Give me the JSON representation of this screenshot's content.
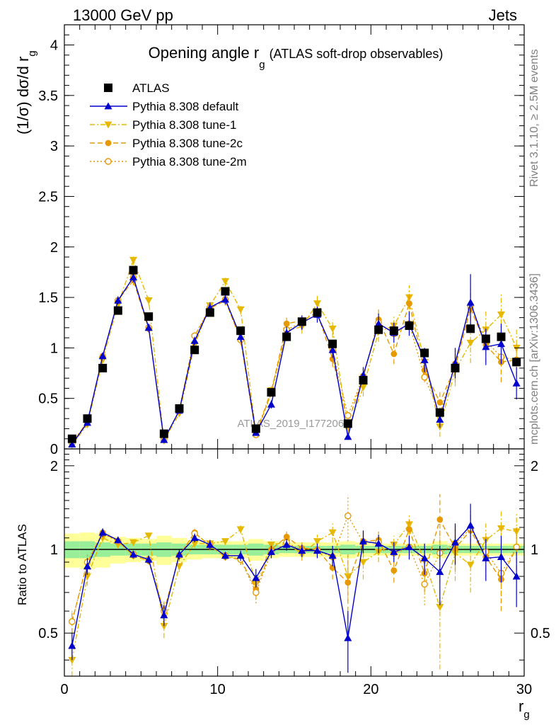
{
  "header": {
    "left": "13000 GeV pp",
    "right": "Jets"
  },
  "side_text": {
    "rivet": "Rivet 3.1.10, ≥ 2.5M events",
    "mcplots": "mcplots.cern.ch [arXiv:1306.3436]"
  },
  "watermark": "ATLAS_2019_I1772062",
  "chart_data": [
    {
      "type": "scatter",
      "panel": "main",
      "title": "Opening angle r_g (ATLAS soft-drop observables)",
      "title_main": "Opening angle r",
      "title_sub": "g",
      "title_extra": "(ATLAS soft-drop observables)",
      "ylabel": "(1/σ) dσ/d r",
      "ylabel_sub": "g",
      "xlim": [
        0,
        30
      ],
      "ylim": [
        0,
        4.2
      ],
      "yticks": [
        0,
        0.5,
        1,
        1.5,
        2,
        2.5,
        3,
        3.5,
        4
      ],
      "ytick_labels": [
        "0",
        "0.5",
        "1",
        "1.5",
        "2",
        "2.5",
        "3",
        "3.5",
        "4"
      ],
      "legend_position": "top-left",
      "x": [
        0.5,
        1.5,
        2.5,
        3.5,
        4.5,
        5.5,
        6.5,
        7.5,
        8.5,
        9.5,
        10.5,
        11.5,
        12.5,
        13.5,
        14.5,
        15.5,
        16.5,
        17.5,
        18.5,
        19.5,
        20.5,
        21.5,
        22.5,
        23.5,
        24.5,
        25.5,
        26.5,
        27.5,
        28.5,
        29.5
      ],
      "series": [
        {
          "name": "ATLAS",
          "color": "#000000",
          "marker": "square",
          "line": "none",
          "values": [
            0.1,
            0.3,
            0.8,
            1.37,
            1.77,
            1.31,
            0.15,
            0.4,
            0.98,
            1.35,
            1.56,
            1.17,
            0.2,
            0.56,
            1.11,
            1.26,
            1.35,
            1.04,
            0.25,
            0.68,
            1.18,
            1.17,
            1.22,
            0.95,
            0.36,
            0.8,
            1.19,
            1.09,
            1.11,
            0.86
          ]
        },
        {
          "name": "Pythia 8.308 default",
          "color": "#0000cc",
          "marker": "triangle-up",
          "line": "solid",
          "values": [
            0.045,
            0.26,
            0.92,
            1.47,
            1.7,
            1.2,
            0.09,
            0.38,
            1.07,
            1.4,
            1.48,
            1.11,
            0.16,
            0.44,
            1.15,
            1.25,
            1.33,
            0.98,
            0.12,
            0.73,
            1.24,
            1.15,
            1.24,
            0.88,
            0.29,
            0.85,
            1.45,
            1.01,
            1.04,
            0.65
          ]
        },
        {
          "name": "Pythia 8.308 tune-1",
          "color": "#e6b800",
          "marker": "triangle-down",
          "line": "dashdot",
          "values": [
            0.04,
            0.24,
            0.88,
            1.43,
            1.87,
            1.47,
            0.08,
            0.35,
            1.03,
            1.42,
            1.66,
            1.38,
            0.15,
            0.58,
            1.17,
            1.21,
            1.44,
            1.19,
            0.2,
            0.61,
            1.16,
            1.22,
            1.5,
            0.86,
            0.22,
            0.78,
            1.05,
            1.18,
            1.33,
            1.0
          ]
        },
        {
          "name": "Pythia 8.308 tune-2c",
          "color": "#e69a00",
          "marker": "circle",
          "line": "dashed",
          "values": [
            0.055,
            0.27,
            0.92,
            1.47,
            1.67,
            1.19,
            0.09,
            0.38,
            1.12,
            1.39,
            1.47,
            1.08,
            0.14,
            0.56,
            1.24,
            1.27,
            1.35,
            0.89,
            0.26,
            0.71,
            1.28,
            0.94,
            1.44,
            0.78,
            0.46,
            0.81,
            1.39,
            1.03,
            0.86,
            0.88
          ]
        },
        {
          "name": "Pythia 8.308 tune-2m",
          "color": "#e69a00",
          "marker": "circle-open",
          "line": "dotted",
          "values": [
            0.055,
            0.27,
            0.91,
            1.47,
            1.7,
            1.2,
            0.09,
            0.38,
            1.12,
            1.4,
            1.48,
            1.08,
            0.14,
            0.55,
            1.18,
            1.25,
            1.33,
            0.98,
            0.33,
            0.72,
            1.25,
            1.14,
            1.24,
            0.71,
            0.35,
            0.84,
            1.42,
            1.07,
            0.91,
            0.88
          ]
        }
      ],
      "error_bars": {
        "Pythia 8.308 default": [
          0.01,
          0.03,
          0.03,
          0.04,
          0.05,
          0.04,
          0.01,
          0.02,
          0.04,
          0.05,
          0.05,
          0.05,
          0.02,
          0.04,
          0.06,
          0.07,
          0.08,
          0.08,
          0.03,
          0.08,
          0.1,
          0.1,
          0.12,
          0.12,
          0.08,
          0.15,
          0.28,
          0.18,
          0.2,
          0.16
        ],
        "Pythia 8.308 tune-1": [
          0.01,
          0.03,
          0.03,
          0.04,
          0.05,
          0.05,
          0.01,
          0.02,
          0.04,
          0.05,
          0.05,
          0.05,
          0.02,
          0.04,
          0.06,
          0.07,
          0.08,
          0.09,
          0.04,
          0.09,
          0.1,
          0.1,
          0.12,
          0.14,
          0.1,
          0.16,
          0.2,
          0.18,
          0.2,
          0.18
        ],
        "Pythia 8.308 tune-2c": [
          0.01,
          0.03,
          0.03,
          0.04,
          0.05,
          0.04,
          0.01,
          0.02,
          0.04,
          0.05,
          0.05,
          0.05,
          0.02,
          0.04,
          0.06,
          0.07,
          0.08,
          0.08,
          0.04,
          0.08,
          0.1,
          0.1,
          0.12,
          0.12,
          0.1,
          0.15,
          0.2,
          0.18,
          0.2,
          0.16
        ]
      }
    },
    {
      "type": "scatter",
      "panel": "ratio",
      "ylabel": "Ratio to ATLAS",
      "xlabel": "r",
      "xlabel_sub": "g",
      "xlim": [
        0,
        30
      ],
      "ylim": [
        0.35,
        2.3
      ],
      "log_y": true,
      "xticks": [
        0,
        10,
        20,
        30
      ],
      "xtick_labels": [
        "0",
        "10",
        "20",
        "30"
      ],
      "yticks": [
        0.5,
        1,
        2
      ],
      "ytick_labels": [
        "0.5",
        "1",
        "2"
      ],
      "reference_line": 1,
      "x": [
        0.5,
        1.5,
        2.5,
        3.5,
        4.5,
        5.5,
        6.5,
        7.5,
        8.5,
        9.5,
        10.5,
        11.5,
        12.5,
        13.5,
        14.5,
        15.5,
        16.5,
        17.5,
        18.5,
        19.5,
        20.5,
        21.5,
        22.5,
        23.5,
        24.5,
        25.5,
        26.5,
        27.5,
        28.5,
        29.5
      ],
      "band_inner": [
        0.07,
        0.07,
        0.06,
        0.05,
        0.05,
        0.05,
        0.06,
        0.05,
        0.04,
        0.04,
        0.04,
        0.04,
        0.05,
        0.04,
        0.03,
        0.03,
        0.03,
        0.03,
        0.04,
        0.03,
        0.03,
        0.03,
        0.03,
        0.03,
        0.04,
        0.03,
        0.03,
        0.03,
        0.03,
        0.03
      ],
      "band_outer": [
        0.14,
        0.15,
        0.14,
        0.11,
        0.1,
        0.09,
        0.12,
        0.1,
        0.08,
        0.07,
        0.07,
        0.07,
        0.09,
        0.07,
        0.06,
        0.06,
        0.06,
        0.06,
        0.07,
        0.06,
        0.05,
        0.05,
        0.05,
        0.05,
        0.07,
        0.05,
        0.05,
        0.05,
        0.05,
        0.05
      ],
      "series": [
        {
          "name": "Pythia 8.308 default",
          "color": "#0000cc",
          "marker": "triangle-up",
          "line": "solid",
          "values": [
            0.45,
            0.87,
            1.15,
            1.08,
            0.96,
            0.92,
            0.58,
            0.96,
            1.1,
            1.04,
            0.95,
            0.95,
            0.79,
            0.98,
            1.04,
            0.99,
            0.99,
            0.95,
            0.48,
            1.07,
            1.05,
            0.98,
            1.02,
            0.93,
            0.83,
            1.06,
            1.22,
            0.93,
            0.94,
            0.8
          ]
        },
        {
          "name": "Pythia 8.308 tune-1",
          "color": "#e6b800",
          "marker": "triangle-down",
          "line": "dashdot",
          "values": [
            0.4,
            0.8,
            1.1,
            1.04,
            1.06,
            1.12,
            0.53,
            0.87,
            1.05,
            1.05,
            1.07,
            1.18,
            0.75,
            1.04,
            1.06,
            0.96,
            1.07,
            1.15,
            0.8,
            0.9,
            0.98,
            1.04,
            1.23,
            0.91,
            0.62,
            0.97,
            0.88,
            1.08,
            1.19,
            1.16
          ]
        },
        {
          "name": "Pythia 8.308 tune-2c",
          "color": "#e69a00",
          "marker": "circle",
          "line": "dashed",
          "values": [
            0.55,
            0.9,
            1.15,
            1.07,
            0.95,
            0.91,
            0.6,
            0.95,
            1.15,
            1.03,
            0.94,
            0.92,
            0.72,
            1.0,
            1.11,
            1.01,
            1.0,
            0.86,
            0.76,
            1.07,
            1.08,
            0.84,
            1.18,
            0.82,
            1.28,
            1.01,
            1.17,
            0.94,
            0.78,
            1.02
          ]
        },
        {
          "name": "Pythia 8.308 tune-2m",
          "color": "#e69a00",
          "marker": "circle-open",
          "line": "dotted",
          "values": [
            0.55,
            0.9,
            1.14,
            1.07,
            0.96,
            0.92,
            0.6,
            0.95,
            1.14,
            1.04,
            0.95,
            0.92,
            0.7,
            0.98,
            1.06,
            0.99,
            0.99,
            0.94,
            1.32,
            1.06,
            1.06,
            0.97,
            1.02,
            0.75,
            0.97,
            1.05,
            1.19,
            0.98,
            0.82,
            1.02
          ]
        }
      ],
      "error_bars": {
        "Pythia 8.308 default": [
          0.05,
          0.06,
          0.04,
          0.03,
          0.03,
          0.03,
          0.05,
          0.04,
          0.04,
          0.04,
          0.03,
          0.04,
          0.06,
          0.05,
          0.05,
          0.05,
          0.06,
          0.08,
          0.12,
          0.1,
          0.08,
          0.08,
          0.1,
          0.12,
          0.2,
          0.18,
          0.24,
          0.16,
          0.18,
          0.18
        ],
        "Pythia 8.308 tune-1": [
          0.05,
          0.06,
          0.04,
          0.03,
          0.03,
          0.03,
          0.05,
          0.04,
          0.04,
          0.04,
          0.03,
          0.04,
          0.06,
          0.05,
          0.05,
          0.05,
          0.06,
          0.09,
          0.15,
          0.12,
          0.08,
          0.08,
          0.1,
          0.14,
          0.25,
          0.2,
          0.18,
          0.16,
          0.18,
          0.2
        ],
        "Pythia 8.308 tune-2c": [
          0.05,
          0.06,
          0.04,
          0.03,
          0.03,
          0.03,
          0.05,
          0.04,
          0.04,
          0.04,
          0.03,
          0.04,
          0.06,
          0.05,
          0.05,
          0.05,
          0.06,
          0.08,
          0.2,
          0.1,
          0.08,
          0.08,
          0.1,
          0.12,
          0.3,
          0.18,
          0.18,
          0.16,
          0.18,
          0.18
        ],
        "Pythia 8.308 tune-2m": [
          0.05,
          0.06,
          0.04,
          0.03,
          0.03,
          0.03,
          0.05,
          0.04,
          0.04,
          0.04,
          0.03,
          0.04,
          0.06,
          0.05,
          0.05,
          0.05,
          0.06,
          0.08,
          0.25,
          0.1,
          0.08,
          0.08,
          0.1,
          0.12,
          0.2,
          0.18,
          0.18,
          0.16,
          0.18,
          0.18
        ]
      }
    }
  ]
}
